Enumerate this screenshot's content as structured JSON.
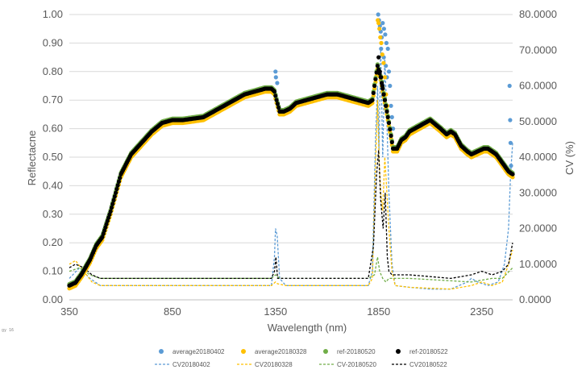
{
  "chart_data": {
    "type": "scatter",
    "xlabel": "Wavelength (nm)",
    "ylabel": "Reflectacne",
    "y2label": "CV (%)",
    "xlim": [
      350,
      2500
    ],
    "ylim": [
      0,
      1
    ],
    "y2lim": [
      0,
      80
    ],
    "x_ticks": [
      "350",
      "850",
      "1350",
      "1850",
      "2350"
    ],
    "y_ticks": [
      "0.00",
      "0.10",
      "0.20",
      "0.30",
      "0.40",
      "0.50",
      "0.60",
      "0.70",
      "0.80",
      "0.90",
      "1.00"
    ],
    "y2_ticks": [
      "0.0000",
      "10.0000",
      "20.0000",
      "30.0000",
      "40.0000",
      "50.0000",
      "60.0000",
      "70.0000",
      "80.0000"
    ],
    "grid": true,
    "legend_position": "bottom",
    "reflectance_profile": {
      "x": [
        350,
        380,
        410,
        450,
        480,
        510,
        550,
        600,
        650,
        700,
        750,
        800,
        850,
        900,
        950,
        1000,
        1050,
        1100,
        1150,
        1200,
        1250,
        1300,
        1330,
        1345,
        1355,
        1370,
        1390,
        1420,
        1450,
        1500,
        1550,
        1600,
        1650,
        1700,
        1750,
        1800,
        1820,
        1830,
        1845,
        1860,
        1880,
        1900,
        1920,
        1940,
        1960,
        1980,
        2000,
        2050,
        2100,
        2150,
        2180,
        2200,
        2220,
        2250,
        2280,
        2300,
        2330,
        2360,
        2380,
        2400,
        2420,
        2440,
        2460,
        2480,
        2500
      ],
      "y": [
        0.05,
        0.06,
        0.09,
        0.14,
        0.19,
        0.22,
        0.31,
        0.44,
        0.51,
        0.55,
        0.59,
        0.62,
        0.63,
        0.63,
        0.635,
        0.64,
        0.66,
        0.68,
        0.7,
        0.72,
        0.73,
        0.74,
        0.74,
        0.73,
        0.7,
        0.66,
        0.66,
        0.67,
        0.69,
        0.7,
        0.71,
        0.72,
        0.72,
        0.71,
        0.7,
        0.69,
        0.7,
        0.75,
        0.82,
        0.78,
        0.7,
        0.62,
        0.53,
        0.53,
        0.56,
        0.57,
        0.59,
        0.61,
        0.63,
        0.6,
        0.58,
        0.59,
        0.58,
        0.54,
        0.52,
        0.51,
        0.52,
        0.53,
        0.53,
        0.52,
        0.51,
        0.49,
        0.47,
        0.45,
        0.44
      ]
    },
    "series": [
      {
        "name": "average20180402",
        "kind": "marker",
        "color": "#5b9bd5",
        "offset": 0.0,
        "spikes": [
          [
            1350,
            0.8
          ],
          [
            1358,
            0.76
          ],
          [
            1352,
            0.78
          ],
          [
            1848,
            1.0
          ],
          [
            1852,
            0.98
          ],
          [
            1856,
            0.96
          ],
          [
            1860,
            0.94
          ],
          [
            1865,
            0.92
          ],
          [
            1870,
            0.97
          ],
          [
            1876,
            0.95
          ],
          [
            1882,
            0.93
          ],
          [
            1888,
            0.9
          ],
          [
            1895,
            0.88
          ],
          [
            1900,
            0.8
          ],
          [
            1905,
            0.75
          ],
          [
            1910,
            0.68
          ],
          [
            1915,
            0.64
          ],
          [
            1920,
            0.6
          ],
          [
            1875,
            0.85
          ],
          [
            1885,
            0.82
          ],
          [
            1890,
            0.78
          ],
          [
            1862,
            0.88
          ],
          [
            2485,
            0.75
          ],
          [
            2488,
            0.63
          ],
          [
            2490,
            0.55
          ],
          [
            2492,
            0.47
          ]
        ]
      },
      {
        "name": "average20180328",
        "kind": "marker",
        "color": "#ffc000",
        "offset": -0.01,
        "spikes": [
          [
            1846,
            0.98
          ],
          [
            1850,
            0.97
          ],
          [
            1854,
            0.95
          ],
          [
            1858,
            0.92
          ],
          [
            1863,
            0.9
          ],
          [
            1868,
            0.86
          ],
          [
            1874,
            0.83
          ],
          [
            1880,
            0.78
          ],
          [
            1886,
            0.72
          ],
          [
            1892,
            0.68
          ]
        ]
      },
      {
        "name": "ref-20180520",
        "kind": "marker",
        "color": "#70ad47",
        "offset": 0.005,
        "spikes": []
      },
      {
        "name": "ref-20180522",
        "kind": "marker",
        "color": "#000000",
        "offset": 0.0,
        "spikes": [
          [
            1850,
            0.85
          ],
          [
            1856,
            0.8
          ],
          [
            1862,
            0.78
          ],
          [
            1868,
            0.75
          ],
          [
            1874,
            0.72
          ],
          [
            1880,
            0.7
          ],
          [
            1886,
            0.68
          ]
        ]
      },
      {
        "name": "CV20180402",
        "kind": "dash",
        "color": "#5b9bd5",
        "axis": "y2",
        "x": [
          350,
          400,
          450,
          500,
          600,
          800,
          1000,
          1200,
          1330,
          1345,
          1350,
          1358,
          1370,
          1400,
          1600,
          1800,
          1820,
          1835,
          1845,
          1852,
          1860,
          1870,
          1880,
          1890,
          1900,
          1915,
          1930,
          2000,
          2100,
          2200,
          2280,
          2300,
          2330,
          2380,
          2430,
          2460,
          2480,
          2490,
          2500
        ],
        "y": [
          6,
          9,
          6,
          4,
          4,
          4,
          4,
          4,
          4,
          12,
          20,
          18,
          6,
          4,
          4,
          4,
          8,
          45,
          60,
          42,
          70,
          40,
          68,
          50,
          30,
          10,
          4,
          3.5,
          3,
          3,
          5,
          6,
          5,
          4,
          5,
          10,
          20,
          35,
          44
        ]
      },
      {
        "name": "CV20180328",
        "kind": "dash",
        "color": "#ffc000",
        "axis": "y2",
        "x": [
          350,
          380,
          420,
          460,
          500,
          600,
          800,
          1000,
          1200,
          1330,
          1350,
          1360,
          1400,
          1600,
          1800,
          1820,
          1835,
          1845,
          1852,
          1860,
          1870,
          1880,
          1890,
          1900,
          1915,
          1930,
          2000,
          2200,
          2300,
          2350,
          2400,
          2450,
          2480,
          2500
        ],
        "y": [
          10,
          11,
          8,
          5,
          4,
          4,
          4,
          4,
          4,
          4,
          5,
          4.5,
          4,
          4,
          4,
          6,
          38,
          56,
          40,
          30,
          25,
          40,
          30,
          20,
          8,
          4,
          3.5,
          3,
          4,
          5,
          4,
          5,
          10,
          14
        ]
      },
      {
        "name": "CV-20180520",
        "kind": "dash",
        "color": "#70ad47",
        "axis": "y2",
        "x": [
          350,
          400,
          450,
          500,
          800,
          1200,
          1330,
          1350,
          1370,
          1600,
          1800,
          1830,
          1845,
          1855,
          1870,
          1885,
          1900,
          2000,
          2300,
          2400,
          2450,
          2500
        ],
        "y": [
          8,
          9,
          7,
          6,
          6,
          6,
          6,
          7,
          6,
          6,
          6,
          7,
          12,
          8,
          6,
          5,
          6,
          6,
          5,
          6,
          6,
          9
        ]
      },
      {
        "name": "CV20180522",
        "kind": "dash",
        "color": "#000000",
        "axis": "y2",
        "x": [
          350,
          380,
          420,
          460,
          500,
          800,
          1200,
          1330,
          1345,
          1352,
          1360,
          1400,
          1600,
          1800,
          1825,
          1840,
          1850,
          1860,
          1872,
          1882,
          1892,
          1900,
          1915,
          1930,
          2000,
          2200,
          2300,
          2350,
          2400,
          2450,
          2480,
          2500
        ],
        "y": [
          9,
          10,
          9,
          7,
          6,
          6,
          6,
          6,
          8,
          12,
          6,
          6,
          6,
          6,
          15,
          35,
          42,
          28,
          20,
          30,
          12,
          8,
          7,
          7,
          7,
          6,
          7,
          8,
          7,
          8,
          10,
          16
        ]
      }
    ]
  },
  "corner_text": "gy\n16"
}
